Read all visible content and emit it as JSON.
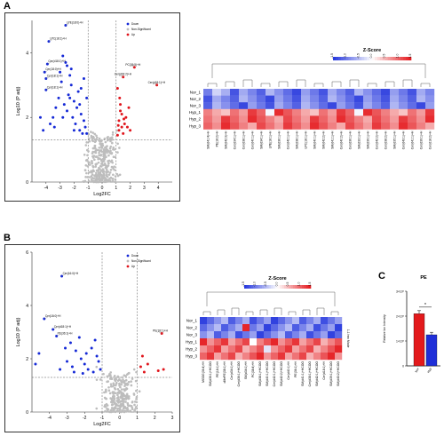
{
  "panels": {
    "a": "A",
    "b": "B",
    "c": "C"
  },
  "colors": {
    "up": "#e0151c",
    "down": "#1529d6",
    "ns": "#bdbdbd",
    "heat_low": "#2234dd",
    "heat_mid": "#ffffff",
    "heat_high": "#e4161b",
    "bar_nor": "#e31a1c",
    "bar_hyp": "#1f2fd8"
  },
  "chart_data": [
    {
      "type": "scatter",
      "panel": "A",
      "xlabel": "Log2FC",
      "ylabel": "Log10 (P adj)",
      "xlim": [
        -5,
        5
      ],
      "ylim": [
        0,
        5
      ],
      "x_ticks": [
        "-4",
        "-3",
        "-2",
        "-1",
        "0",
        "1",
        "2",
        "3",
        "4"
      ],
      "y_ticks": [
        "0",
        "2",
        "4"
      ],
      "thresholds": {
        "fc": [
          -1,
          1
        ],
        "p": 1.3
      },
      "legend": [
        "Down",
        "Non-Significant",
        "Up"
      ],
      "annotations": [
        {
          "label": "LPE(18:0)+H",
          "x": -2.6,
          "y": 4.85
        },
        {
          "label": "LPC(18:1)+H",
          "x": -3.8,
          "y": 4.35
        },
        {
          "label": "Cer(d18:1)+H",
          "x": -3.9,
          "y": 3.65
        },
        {
          "label": "Cer(18:0)+H",
          "x": -4.1,
          "y": 3.4
        },
        {
          "label": "Cer(18:1)+H",
          "x": -4.0,
          "y": 3.2
        },
        {
          "label": "Cer(18:1)+H",
          "x": -4.0,
          "y": 2.85
        },
        {
          "label": "PC(36:5)+H",
          "x": 2.3,
          "y": 3.55
        },
        {
          "label": "Cer(d18:2)+H",
          "x": 1.5,
          "y": 3.25
        },
        {
          "label": "Cer(d18:1)+H",
          "x": 3.9,
          "y": 3.0
        }
      ],
      "up": [
        [
          1.1,
          2.9
        ],
        [
          1.3,
          2.4
        ],
        [
          1.4,
          2.1
        ],
        [
          1.2,
          1.9
        ],
        [
          1.6,
          1.8
        ],
        [
          1.8,
          1.7
        ],
        [
          1.2,
          1.6
        ],
        [
          1.5,
          1.5
        ],
        [
          1.1,
          1.45
        ],
        [
          1.3,
          2.2
        ],
        [
          1.7,
          2.0
        ],
        [
          1.4,
          1.7
        ],
        [
          2.0,
          1.6
        ],
        [
          1.25,
          2.6
        ],
        [
          1.55,
          1.95
        ],
        [
          2.3,
          3.55
        ],
        [
          1.5,
          3.25
        ],
        [
          3.9,
          3.0
        ],
        [
          1.9,
          2.3
        ],
        [
          1.15,
          1.75
        ]
      ],
      "down": [
        [
          -2.6,
          4.85
        ],
        [
          -3.8,
          4.35
        ],
        [
          -3.9,
          3.65
        ],
        [
          -4.1,
          3.4
        ],
        [
          -4.0,
          3.2
        ],
        [
          -4.0,
          2.85
        ],
        [
          -2.8,
          3.9
        ],
        [
          -2.5,
          3.6
        ],
        [
          -2.3,
          3.3
        ],
        [
          -2.2,
          3.0
        ],
        [
          -2.9,
          3.1
        ],
        [
          -2.4,
          2.7
        ],
        [
          -2.0,
          2.5
        ],
        [
          -1.8,
          2.3
        ],
        [
          -1.5,
          2.1
        ],
        [
          -1.3,
          1.9
        ],
        [
          -1.2,
          1.7
        ],
        [
          -1.6,
          1.6
        ],
        [
          -2.1,
          2.0
        ],
        [
          -2.7,
          2.4
        ],
        [
          -3.1,
          2.6
        ],
        [
          -3.3,
          2.3
        ],
        [
          -3.5,
          2.0
        ],
        [
          -3.7,
          1.8
        ],
        [
          -1.4,
          1.5
        ],
        [
          -1.9,
          1.8
        ],
        [
          -2.5,
          2.2
        ],
        [
          -1.1,
          2.6
        ],
        [
          -1.7,
          2.8
        ],
        [
          -2.2,
          3.5
        ],
        [
          -2.6,
          3.7
        ],
        [
          -1.5,
          2.9
        ],
        [
          -3.0,
          3.4
        ],
        [
          -1.3,
          3.2
        ],
        [
          -2.0,
          1.6
        ],
        [
          -3.4,
          1.7
        ],
        [
          -2.8,
          2.0
        ],
        [
          -1.1,
          1.5
        ],
        [
          -4.4,
          2.0
        ],
        [
          -4.2,
          1.6
        ],
        [
          -1.6,
          2.4
        ],
        [
          -2.3,
          2.6
        ]
      ],
      "ns_range": {
        "x": [
          -1.6,
          1.6
        ],
        "y": [
          0,
          1.3
        ],
        "n": 320
      }
    },
    {
      "type": "heatmap",
      "panel": "A",
      "legend_title": "Z-Score",
      "scale_ticks": [
        "-1.5",
        "-1.0",
        "-0.5",
        "0.0",
        "0.5",
        "1.0",
        "1.5"
      ],
      "rows": [
        "Nor_1",
        "Nor_2",
        "Nor_3",
        "Hyp_1",
        "Hyp_2",
        "Hyp_3"
      ],
      "columns": [
        "SM(d41:4)+H",
        "PE(18:2)+H",
        "SM(d42:3)+H",
        "Cer(d34:1)+H",
        "Cer(d38:1)+H",
        "Cer(d40:1)+H",
        "SM(d34:1)+H",
        "LPE(18:1)+H",
        "SM(d36:1)+H",
        "Cer(d42:1)+H",
        "SM(d38:1)+H",
        "LPC(18:1)+H",
        "SM(d40:1)+H",
        "SM(d42:2)+H",
        "SM(d41:1)+H",
        "Cer(d40:2)+H",
        "Cer(d36:1)+H",
        "SM(d33:1)+H",
        "SM(d39:1)+H",
        "Cer(d42:2)+H",
        "Cer(d38:2)+H",
        "SM(d35:1)+H",
        "Cer(d43:1)+H",
        "Cer(d41:1)+H",
        "Cer(d39:1)+H",
        "Cer(d18:2)+H"
      ]
    },
    {
      "type": "scatter",
      "panel": "B",
      "xlabel": "Log2FC",
      "ylabel": "Log10 (P adj)",
      "xlim": [
        -5,
        3
      ],
      "ylim": [
        0,
        6
      ],
      "x_ticks": [
        "-4",
        "-3",
        "-2",
        "-1",
        "0",
        "1",
        "2",
        "3"
      ],
      "y_ticks": [
        "0",
        "2",
        "4",
        "6"
      ],
      "thresholds": {
        "fc": [
          -1,
          1
        ],
        "p": 1.3
      },
      "legend": [
        "Down",
        "Non-Significant",
        "Up"
      ],
      "annotations": [
        {
          "label": "Cer(16:0)+H",
          "x": -3.3,
          "y": 5.1
        },
        {
          "label": "Cer(18:0)+H",
          "x": -4.3,
          "y": 3.5
        },
        {
          "label": "Cer(d18:1)+H",
          "x": -3.8,
          "y": 3.1
        },
        {
          "label": "PE(36:1)+H",
          "x": -3.6,
          "y": 2.85
        },
        {
          "label": "PE(18:1)+H",
          "x": 2.4,
          "y": 2.95
        }
      ],
      "up": [
        [
          2.4,
          2.95
        ],
        [
          1.2,
          1.7
        ],
        [
          1.4,
          1.5
        ],
        [
          1.6,
          1.8
        ],
        [
          2.2,
          1.55
        ],
        [
          2.5,
          1.6
        ],
        [
          1.3,
          2.1
        ]
      ],
      "down": [
        [
          -3.3,
          5.1
        ],
        [
          -4.3,
          3.5
        ],
        [
          -3.8,
          3.1
        ],
        [
          -3.6,
          2.85
        ],
        [
          -2.8,
          2.6
        ],
        [
          -2.5,
          2.3
        ],
        [
          -2.2,
          2.0
        ],
        [
          -2.0,
          1.8
        ],
        [
          -1.8,
          1.6
        ],
        [
          -1.6,
          2.4
        ],
        [
          -1.3,
          2.1
        ],
        [
          -2.6,
          1.5
        ],
        [
          -3.0,
          1.9
        ],
        [
          -1.5,
          1.5
        ],
        [
          -4.6,
          2.2
        ],
        [
          -4.8,
          1.8
        ],
        [
          -1.2,
          1.9
        ],
        [
          -2.3,
          2.8
        ],
        [
          -1.9,
          2.2
        ],
        [
          -3.1,
          2.4
        ],
        [
          -1.1,
          1.6
        ],
        [
          -2.7,
          1.7
        ],
        [
          -1.4,
          2.7
        ],
        [
          -3.4,
          1.6
        ],
        [
          -2.1,
          1.45
        ]
      ],
      "ns_range": {
        "x": [
          -1.5,
          1.5
        ],
        "y": [
          0,
          1.3
        ],
        "n": 260
      }
    },
    {
      "type": "heatmap",
      "panel": "B",
      "legend_title": "Z-Score",
      "scale_ticks": [
        "-1.5",
        "-1.0",
        "-0.5",
        "0.0",
        "0.5",
        "1.0",
        "1.5"
      ],
      "side_label": "1-1 hex Mode",
      "rows": [
        "Nor_1",
        "Nor_2",
        "Nor_3",
        "Hyp_1",
        "Hyp_2",
        "Hyp_3"
      ],
      "columns": [
        "MGDG(36:4)+H",
        "SM(d36:1)+HCOO",
        "PE(18:1)+H",
        "dMePE(38:1)+H",
        "Cer(d34:1)+H",
        "Cer(d36:1)+HCOO",
        "SM(d34:1)+H",
        "PC(38:4)+H",
        "SM(d38:1)+HCOO",
        "SM(d40:1)+HCOO",
        "Cer(d42:1)+HCOO",
        "SM(d42:2)+HCOO",
        "Cer(d40:1)+H",
        "PE(36:1)+H",
        "SM(d41:1)+HCOO",
        "Cer(d38:1)+HCOO",
        "SM(d42:1)+HCOO",
        "Cer(d18:1)+H",
        "SM(d39:1)+HCOO",
        "SM(d43:2)+HCOO"
      ]
    },
    {
      "type": "bar",
      "panel": "C",
      "title": "PE",
      "ylabel": "Relative Ion Intensity",
      "categories": [
        "Nor",
        "Hyp"
      ],
      "values": [
        2.1,
        1.25
      ],
      "errors": [
        0.12,
        0.1
      ],
      "ylim": [
        0,
        3
      ],
      "y_ticks": [
        "0",
        "1×10⁵",
        "2×10⁵",
        "3×10⁵"
      ],
      "significance": "*"
    }
  ]
}
